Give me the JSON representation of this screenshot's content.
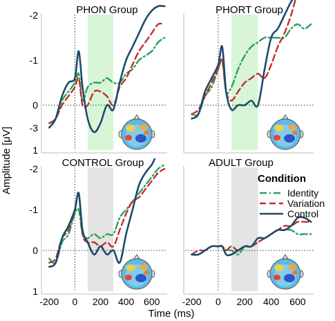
{
  "figure": {
    "ylabel": "Amplitude [μV]",
    "xlabel": "Time (ms)",
    "legend": {
      "title": "Condition",
      "items": [
        {
          "label": "Identity",
          "color": "#2ca05a",
          "dash": "dash-dot"
        },
        {
          "label": "Variation",
          "color": "#c0302b",
          "dash": "dash"
        },
        {
          "label": "Control",
          "color": "#1b4a6b",
          "dash": "solid"
        }
      ],
      "placement": "inside ADULT Group panel, upper right"
    },
    "highlight_colors": {
      "PHON Group": "#d8f5d8",
      "PHORT Group": "#d8f5d8",
      "CONTROL Group": "#e4e4e4",
      "ADULT Group": "#e4e4e4"
    }
  },
  "chart_data": [
    {
      "type": "line",
      "title": "PHON Group",
      "xlim": [
        -250,
        720
      ],
      "ylim": [
        1.5,
        -3.0
      ],
      "y_inverted": true,
      "xticks": [
        -200,
        0,
        200,
        400,
        600
      ],
      "yticks": [
        -3,
        -2,
        -1,
        0,
        1
      ],
      "shaded_window": [
        100,
        300
      ],
      "reference_lines": {
        "x": 0,
        "y": 0
      },
      "series": [
        {
          "name": "Identity",
          "x": [
            -200,
            -150,
            -100,
            -50,
            0,
            30,
            60,
            100,
            150,
            200,
            250,
            300,
            350,
            400,
            450,
            500,
            550,
            600,
            650,
            700
          ],
          "y": [
            0.4,
            0.3,
            -0.1,
            -0.3,
            -0.5,
            -0.7,
            -0.1,
            -0.4,
            -0.5,
            -0.5,
            -0.6,
            -0.5,
            -0.5,
            -0.7,
            -0.8,
            -1.0,
            -1.1,
            -1.2,
            -1.4,
            -1.5
          ]
        },
        {
          "name": "Variation",
          "x": [
            -200,
            -150,
            -100,
            -50,
            0,
            30,
            60,
            100,
            150,
            200,
            250,
            300,
            350,
            400,
            450,
            500,
            550,
            600,
            650,
            700
          ],
          "y": [
            0.4,
            0.3,
            0.0,
            -0.2,
            -0.4,
            -0.6,
            0.0,
            0.0,
            -0.3,
            -0.3,
            -0.2,
            0.0,
            -0.4,
            -0.6,
            -0.9,
            -1.2,
            -1.4,
            -1.6,
            -1.8,
            -1.8
          ]
        },
        {
          "name": "Control",
          "x": [
            -200,
            -150,
            -100,
            -50,
            0,
            30,
            60,
            100,
            150,
            200,
            250,
            300,
            350,
            400,
            450,
            500,
            550,
            600,
            650,
            700
          ],
          "y": [
            0.5,
            0.3,
            -0.2,
            -0.5,
            -0.6,
            -1.2,
            -0.4,
            0.3,
            0.6,
            0.4,
            0.0,
            0.1,
            -0.5,
            -1.0,
            -1.3,
            -1.6,
            -1.9,
            -2.1,
            -2.2,
            -2.2
          ]
        }
      ]
    },
    {
      "type": "line",
      "title": "PHORT Group",
      "xlim": [
        -250,
        720
      ],
      "ylim": [
        1.5,
        -3.0
      ],
      "y_inverted": true,
      "xticks": [
        -200,
        0,
        200,
        400,
        600
      ],
      "yticks": [
        -3,
        -2,
        -1,
        0,
        1
      ],
      "shaded_window": [
        100,
        300
      ],
      "reference_lines": {
        "x": 0,
        "y": 0
      },
      "series": [
        {
          "name": "Identity",
          "x": [
            -200,
            -150,
            -100,
            -50,
            0,
            30,
            60,
            100,
            150,
            200,
            250,
            300,
            350,
            400,
            450,
            500,
            550,
            600,
            650,
            700
          ],
          "y": [
            0.2,
            0.2,
            -0.2,
            -0.4,
            -0.8,
            -1.0,
            -0.3,
            -0.4,
            -0.8,
            -1.1,
            -1.3,
            -1.4,
            -1.5,
            -1.5,
            -1.5,
            -1.5,
            -1.7,
            -1.8,
            -1.7,
            -1.8
          ]
        },
        {
          "name": "Variation",
          "x": [
            -200,
            -150,
            -100,
            -50,
            0,
            30,
            60,
            100,
            150,
            200,
            250,
            300,
            350,
            400,
            450,
            500,
            550,
            600,
            650,
            700
          ],
          "y": [
            0.2,
            0.1,
            -0.2,
            -0.5,
            -0.8,
            -1.0,
            -0.3,
            -0.1,
            -0.3,
            -0.5,
            -0.6,
            -0.7,
            -0.6,
            -0.9,
            -1.3,
            -1.6,
            -2.0,
            -2.5,
            -2.7,
            -2.7
          ]
        },
        {
          "name": "Control",
          "x": [
            -200,
            -150,
            -100,
            -50,
            0,
            30,
            60,
            100,
            150,
            200,
            250,
            300,
            350,
            400,
            450,
            500,
            550,
            600,
            650,
            700
          ],
          "y": [
            0.3,
            0.2,
            -0.3,
            -0.6,
            -0.9,
            -1.3,
            -0.3,
            0.1,
            0.0,
            0.0,
            -0.1,
            0.0,
            -0.8,
            -1.5,
            -1.7,
            -2.0,
            -2.3,
            -2.5,
            -2.8,
            -3.0
          ]
        }
      ]
    },
    {
      "type": "line",
      "title": "CONTROL Group",
      "xlim": [
        -250,
        720
      ],
      "ylim": [
        1.5,
        -3.0
      ],
      "y_inverted": true,
      "xticks": [
        -200,
        0,
        200,
        400,
        600
      ],
      "yticks": [
        -3,
        -2,
        -1,
        0,
        1
      ],
      "shaded_window": [
        100,
        300
      ],
      "reference_lines": {
        "x": 0,
        "y": 0
      },
      "series": [
        {
          "name": "Identity",
          "x": [
            -200,
            -150,
            -100,
            -50,
            0,
            30,
            60,
            100,
            150,
            200,
            250,
            300,
            350,
            400,
            450,
            500,
            550,
            600,
            650,
            700
          ],
          "y": [
            0.2,
            0.3,
            -0.2,
            -0.4,
            -0.9,
            -1.0,
            -0.4,
            -0.3,
            -0.4,
            -0.3,
            -0.4,
            -0.4,
            -0.8,
            -1.0,
            -1.2,
            -1.4,
            -1.6,
            -1.8,
            -2.0,
            -2.1
          ]
        },
        {
          "name": "Variation",
          "x": [
            -200,
            -150,
            -100,
            -50,
            0,
            30,
            60,
            100,
            150,
            200,
            250,
            300,
            350,
            400,
            450,
            500,
            550,
            600,
            650,
            700
          ],
          "y": [
            0.3,
            0.2,
            -0.3,
            -0.5,
            -1.0,
            -1.4,
            -0.4,
            -0.2,
            -0.2,
            -0.1,
            -0.2,
            -0.1,
            -0.5,
            -0.9,
            -1.2,
            -1.3,
            -1.5,
            -1.7,
            -1.9,
            -2.0
          ]
        },
        {
          "name": "Control",
          "x": [
            -200,
            -150,
            -100,
            -50,
            0,
            30,
            60,
            100,
            150,
            200,
            250,
            300,
            350,
            400,
            450,
            500,
            550,
            600,
            650,
            700
          ],
          "y": [
            0.4,
            0.3,
            -0.3,
            -0.6,
            -1.0,
            -1.4,
            -0.5,
            -0.2,
            0.1,
            -0.1,
            0.1,
            0.0,
            0.3,
            -0.4,
            -1.0,
            -1.6,
            -1.9,
            -2.1,
            -2.4,
            -2.5
          ]
        }
      ]
    },
    {
      "type": "line",
      "title": "ADULT Group",
      "xlim": [
        -250,
        720
      ],
      "ylim": [
        1.5,
        -3.0
      ],
      "y_inverted": true,
      "xticks": [
        -200,
        0,
        200,
        400,
        600
      ],
      "yticks": [
        -3,
        -2,
        -1,
        0,
        1
      ],
      "shaded_window": [
        100,
        300
      ],
      "reference_lines": {
        "x": 0,
        "y": 0
      },
      "series": [
        {
          "name": "Identity",
          "x": [
            -200,
            -150,
            -100,
            -50,
            0,
            30,
            60,
            100,
            150,
            200,
            250,
            300,
            350,
            400,
            450,
            500,
            550,
            600,
            650,
            700
          ],
          "y": [
            0.1,
            0.1,
            0.0,
            -0.1,
            -0.1,
            -0.1,
            0.0,
            0.0,
            0.1,
            -0.1,
            -0.1,
            -0.2,
            -0.3,
            -0.4,
            -0.5,
            -0.5,
            -0.5,
            -0.4,
            -0.4,
            -0.4
          ]
        },
        {
          "name": "Variation",
          "x": [
            -200,
            -150,
            -100,
            -50,
            0,
            30,
            60,
            100,
            150,
            200,
            250,
            300,
            350,
            400,
            450,
            500,
            550,
            600,
            650,
            700
          ],
          "y": [
            0.1,
            0.0,
            0.0,
            -0.1,
            -0.1,
            -0.1,
            0.0,
            -0.1,
            0.0,
            -0.1,
            -0.1,
            -0.2,
            -0.3,
            -0.4,
            -0.5,
            -0.6,
            -0.6,
            -0.7,
            -0.7,
            -0.7
          ]
        },
        {
          "name": "Control",
          "x": [
            -200,
            -150,
            -100,
            -50,
            0,
            30,
            60,
            100,
            150,
            200,
            250,
            300,
            350,
            400,
            450,
            500,
            550,
            600,
            650,
            700
          ],
          "y": [
            0.1,
            0.1,
            0.0,
            -0.1,
            -0.1,
            -0.1,
            0.1,
            0.1,
            0.0,
            -0.1,
            -0.1,
            -0.3,
            -0.3,
            -0.4,
            -0.5,
            -0.5,
            -0.6,
            -0.8,
            -0.8,
            -0.7
          ]
        }
      ]
    }
  ]
}
